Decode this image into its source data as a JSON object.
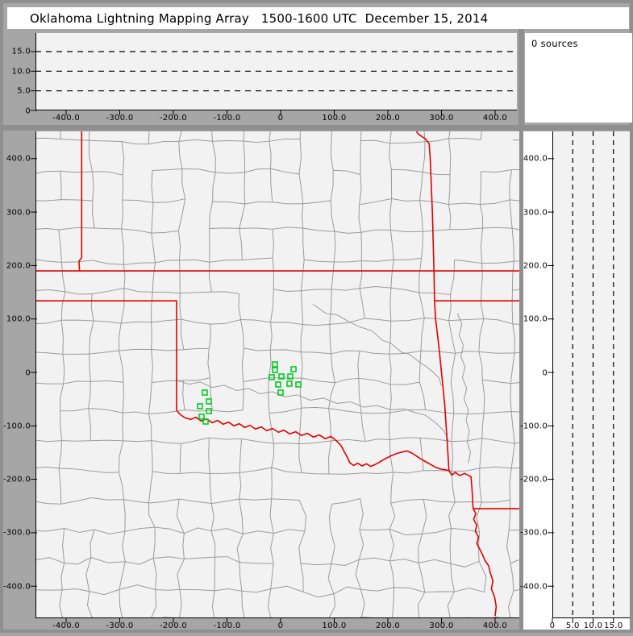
{
  "title": "Oklahoma Lightning Mapping Array   1500-1600 UTC  December 15, 2014",
  "sources_panel": {
    "count_label": "0 sources"
  },
  "colors": {
    "frame": "#a6a6a6",
    "sash": "#8f8f8f",
    "plot_bg": "#f2f2f2",
    "panel_white": "#ffffff",
    "axis": "#000000",
    "county_line": "#9b9b9b",
    "state_border": "#e10000",
    "station_marker": "#00cc22",
    "dashed_line": "#000000"
  },
  "top_panel": {
    "y_ticks": [
      {
        "label": "15.0",
        "km": 15
      },
      {
        "label": "10.0",
        "km": 10
      },
      {
        "label": "5.0",
        "km": 5
      },
      {
        "label": "0",
        "km": 0
      }
    ],
    "x_ticks": [
      {
        "label": "-400.0",
        "km": -400
      },
      {
        "label": "-300.0",
        "km": -300
      },
      {
        "label": "-200.0",
        "km": -200
      },
      {
        "label": "-100.0",
        "km": -100
      },
      {
        "label": "0",
        "km": 0
      },
      {
        "label": "100.0",
        "km": 100
      },
      {
        "label": "200.0",
        "km": 200
      },
      {
        "label": "300.0",
        "km": 300
      },
      {
        "label": "400.0",
        "km": 400
      }
    ],
    "dashed_km": [
      5,
      10,
      15
    ],
    "alt_range_km": [
      0,
      19.7
    ]
  },
  "map_panel": {
    "x_ticks": [
      {
        "label": "-400.0",
        "km": -400
      },
      {
        "label": "-300.0",
        "km": -300
      },
      {
        "label": "-200.0",
        "km": -200
      },
      {
        "label": "-100.0",
        "km": -100
      },
      {
        "label": "0",
        "km": 0
      },
      {
        "label": "100.0",
        "km": 100
      },
      {
        "label": "200.0",
        "km": 200
      },
      {
        "label": "300.0",
        "km": 300
      },
      {
        "label": "400.0",
        "km": 400
      }
    ],
    "y_ticks": [
      {
        "label": "400.0",
        "km": 400
      },
      {
        "label": "300.0",
        "km": 300
      },
      {
        "label": "200.0",
        "km": 200
      },
      {
        "label": "100.0",
        "km": 100
      },
      {
        "label": "0",
        "km": 0
      },
      {
        "label": "-100.0",
        "km": -100
      },
      {
        "label": "-200.0",
        "km": -200
      },
      {
        "label": "-300.0",
        "km": -300
      },
      {
        "label": "-400.0",
        "km": -400
      }
    ],
    "xlim_km": [
      -457,
      445
    ],
    "ylim_km": [
      -460,
      451
    ]
  },
  "right_panel": {
    "x_ticks": [
      {
        "label": "0",
        "km": 0
      },
      {
        "label": "5.0",
        "km": 5
      },
      {
        "label": "10.0",
        "km": 10
      },
      {
        "label": "15.0",
        "km": 15
      }
    ],
    "y_ticks": [
      {
        "label": "400.0",
        "km": 400
      },
      {
        "label": "300.0",
        "km": 300
      },
      {
        "label": "200.0",
        "km": 200
      },
      {
        "label": "100.0",
        "km": 100
      },
      {
        "label": "0",
        "km": 0
      },
      {
        "label": "-100.0",
        "km": -100
      },
      {
        "label": "-200.0",
        "km": -200
      },
      {
        "label": "-300.0",
        "km": -300
      },
      {
        "label": "-400.0",
        "km": -400
      }
    ],
    "dashed_km": [
      5,
      10,
      15
    ]
  },
  "stations_km": [
    [
      -10.5,
      15.1
    ],
    [
      -10.5,
      4.5
    ],
    [
      -16.5,
      -9
    ],
    [
      1.5,
      -7.5
    ],
    [
      24.1,
      6
    ],
    [
      18,
      -7.5
    ],
    [
      -4.5,
      -22.6
    ],
    [
      16.5,
      -21.1
    ],
    [
      33.1,
      -22.6
    ],
    [
      0,
      -37.7
    ],
    [
      -141.4,
      -37.7
    ],
    [
      -133.8,
      -54.3
    ],
    [
      -150.4,
      -63.3
    ],
    [
      -133.8,
      -72.4
    ],
    [
      -147.4,
      -82.9
    ],
    [
      -139.8,
      -92
    ]
  ],
  "state_borders_km": [
    [
      [
        -371,
        451
      ],
      [
        -371,
        215
      ],
      [
        -376,
        208
      ],
      [
        -375,
        190
      ]
    ],
    [
      [
        -457,
        190
      ],
      [
        445,
        190
      ]
    ],
    [
      [
        -457,
        134
      ],
      [
        -194,
        134
      ],
      [
        -194,
        -71
      ]
    ],
    [
      [
        -194,
        -71
      ],
      [
        -187,
        -79
      ],
      [
        -178,
        -85
      ],
      [
        -168,
        -88
      ],
      [
        -158,
        -84
      ],
      [
        -148,
        -91
      ],
      [
        -138,
        -87
      ],
      [
        -128,
        -94
      ],
      [
        -117,
        -90
      ],
      [
        -107,
        -97
      ],
      [
        -97,
        -93
      ],
      [
        -87,
        -100
      ],
      [
        -77,
        -96
      ],
      [
        -67,
        -103
      ],
      [
        -57,
        -99
      ],
      [
        -47,
        -106
      ],
      [
        -36,
        -102
      ],
      [
        -26,
        -109
      ],
      [
        -15,
        -105
      ],
      [
        -4,
        -112
      ],
      [
        6,
        -108
      ],
      [
        17,
        -115
      ],
      [
        28,
        -111
      ],
      [
        39,
        -118
      ],
      [
        50,
        -114
      ],
      [
        61,
        -121
      ],
      [
        72,
        -117
      ],
      [
        83,
        -124
      ],
      [
        94,
        -120
      ],
      [
        104,
        -128
      ],
      [
        112,
        -136
      ],
      [
        118,
        -147
      ],
      [
        124,
        -158
      ],
      [
        129,
        -169
      ],
      [
        136,
        -174
      ],
      [
        144,
        -170
      ],
      [
        152,
        -175
      ],
      [
        160,
        -171
      ],
      [
        168,
        -176
      ],
      [
        177,
        -172
      ],
      [
        186,
        -167
      ],
      [
        196,
        -161
      ],
      [
        206,
        -156
      ],
      [
        216,
        -152
      ],
      [
        226,
        -149
      ],
      [
        236,
        -147
      ],
      [
        245,
        -151
      ],
      [
        254,
        -157
      ],
      [
        263,
        -163
      ],
      [
        272,
        -168
      ],
      [
        281,
        -173
      ],
      [
        290,
        -178
      ],
      [
        299,
        -181
      ],
      [
        307,
        -182
      ],
      [
        314,
        -184
      ]
    ],
    [
      [
        253,
        451
      ],
      [
        258,
        445
      ],
      [
        270,
        437
      ],
      [
        277,
        428
      ],
      [
        279,
        400
      ],
      [
        283,
        300
      ],
      [
        286,
        190
      ],
      [
        287,
        134
      ],
      [
        289,
        100
      ],
      [
        295,
        50
      ],
      [
        300,
        0
      ],
      [
        306,
        -60
      ],
      [
        310,
        -120
      ],
      [
        314,
        -184
      ],
      [
        319,
        -192
      ],
      [
        326,
        -187
      ],
      [
        334,
        -193
      ],
      [
        343,
        -189
      ],
      [
        355,
        -195
      ],
      [
        357,
        -220
      ],
      [
        359,
        -255
      ]
    ],
    [
      [
        287,
        134
      ],
      [
        445,
        134
      ]
    ],
    [
      [
        359,
        -255
      ],
      [
        445,
        -255
      ]
    ],
    [
      [
        359,
        -255
      ],
      [
        364,
        -264
      ],
      [
        360,
        -275
      ],
      [
        366,
        -286
      ],
      [
        363,
        -297
      ],
      [
        369,
        -308
      ],
      [
        366,
        -320
      ],
      [
        372,
        -332
      ],
      [
        377,
        -342
      ],
      [
        381,
        -352
      ],
      [
        388,
        -362
      ],
      [
        391,
        -375
      ],
      [
        396,
        -390
      ],
      [
        393,
        -405
      ],
      [
        399,
        -420
      ],
      [
        402,
        -438
      ],
      [
        400,
        -456
      ]
    ]
  ],
  "rivers_km": [
    [
      [
        60,
        128
      ],
      [
        85,
        110
      ],
      [
        105,
        108
      ],
      [
        125,
        96
      ],
      [
        148,
        85
      ],
      [
        170,
        78
      ],
      [
        190,
        60
      ],
      [
        205,
        55
      ],
      [
        225,
        38
      ],
      [
        240,
        34
      ],
      [
        258,
        20
      ],
      [
        270,
        12
      ],
      [
        283,
        2
      ],
      [
        295,
        -10
      ],
      [
        300,
        -25
      ]
    ],
    [
      [
        -194,
        -15
      ],
      [
        -170,
        -22
      ],
      [
        -150,
        -18
      ],
      [
        -128,
        -28
      ],
      [
        -105,
        -24
      ],
      [
        -82,
        -34
      ],
      [
        -60,
        -30
      ],
      [
        -38,
        -40
      ],
      [
        -15,
        -36
      ],
      [
        8,
        -46
      ],
      [
        30,
        -42
      ],
      [
        55,
        -52
      ],
      [
        80,
        -48
      ],
      [
        105,
        -58
      ],
      [
        130,
        -55
      ],
      [
        155,
        -65
      ],
      [
        180,
        -62
      ],
      [
        205,
        -70
      ],
      [
        230,
        -68
      ],
      [
        250,
        -75
      ],
      [
        270,
        -80
      ],
      [
        290,
        -95
      ],
      [
        305,
        -110
      ],
      [
        314,
        -130
      ]
    ],
    [
      [
        330,
        110
      ],
      [
        338,
        90
      ],
      [
        333,
        70
      ],
      [
        341,
        50
      ],
      [
        336,
        30
      ],
      [
        344,
        10
      ],
      [
        339,
        -10
      ],
      [
        347,
        -30
      ],
      [
        342,
        -50
      ],
      [
        350,
        -70
      ],
      [
        346,
        -90
      ],
      [
        352,
        -110
      ],
      [
        348,
        -130
      ],
      [
        354,
        -150
      ],
      [
        350,
        -170
      ]
    ]
  ],
  "county_grid": {
    "seed": 11,
    "step_km": 56,
    "node_jitter_km": 13,
    "skip_probability": 0.13
  }
}
